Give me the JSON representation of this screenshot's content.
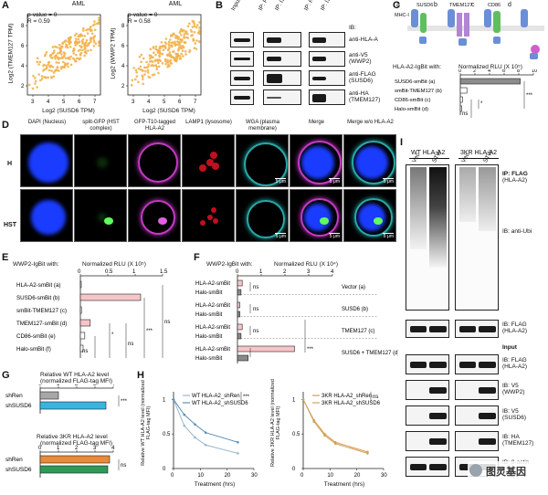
{
  "panels": {
    "A": "A",
    "B": "B",
    "C": "C",
    "D": "D",
    "E": "E",
    "F": "F",
    "G": "G",
    "H": "H",
    "I": "I"
  },
  "panelA": {
    "title": "AML",
    "stats1_p": "p-value = 0",
    "stats1_r": "R = 0.59",
    "stats2_p": "p-value = 0",
    "stats2_r": "R = 0.58",
    "ylabel1": "Log2 (TMEM127 TPM)",
    "ylabel2": "Log2 (WWP2 TPM)",
    "xlabel": "Log2 (SUSD6 TPM)",
    "xticks": [
      "3",
      "4",
      "5",
      "6",
      "7"
    ],
    "yticks": [
      "2",
      "4",
      "6",
      "8"
    ],
    "dot_color": "#f2b24c"
  },
  "panelB": {
    "lanes": [
      "Input",
      "IP: FLAG",
      "IP: ISO",
      "IP: HA",
      "IP: ISO"
    ],
    "ib_header": "IB:",
    "rows": [
      "anti-HLA-A",
      "anti-V5 (WWP2)",
      "anti-FLAG (SUSD6)",
      "anti-HA (TMEM127)"
    ]
  },
  "panelC": {
    "schemes": [
      "a",
      "b",
      "c",
      "d"
    ],
    "labels": [
      "SUSD6",
      "TMEM127",
      "CD86",
      "MHC-I"
    ],
    "ylabel": "HLA-A2-IgBit with:",
    "xlabel": "Normalized RLU (X 10⁵)",
    "xticks": [
      "0",
      "2",
      "4",
      "6",
      "8",
      "10"
    ],
    "rows": [
      "SUSD6-smBit (a)",
      "smBit-TMEM127 (b)",
      "CD86-smBit (c)",
      "Halo-smBit (d)"
    ],
    "chart_data": {
      "type": "bar",
      "categories": [
        "SUSD6-smBit (a)",
        "smBit-TMEM127 (b)",
        "CD86-smBit (c)",
        "Halo-smBit (d)"
      ],
      "values": [
        8.2,
        0.9,
        0.3,
        0.2
      ],
      "xlim": [
        0,
        10
      ],
      "xlabel": "Normalized RLU (X 10⁵)"
    },
    "sig": [
      "ns",
      "*",
      "***"
    ]
  },
  "panelD": {
    "cols": [
      "DAPI (Nucleus)",
      "split-GFP (HST complex)",
      "GFP-T10-tagged HLA-A2",
      "LAMP1 (lysosome)",
      "WGA (plasma membrane)",
      "Merge",
      "Merge w/o HLA-A2"
    ],
    "rows": [
      "H",
      "HST"
    ],
    "scale": "5 μm"
  },
  "panelE": {
    "ylabel": "WWP2-IgBit with:",
    "xlabel": "Normalized RLU (X 10⁵)",
    "xticks": [
      "0",
      "0.5",
      "1",
      "1.5"
    ],
    "rows": [
      "HLA-A2-smBit (a)",
      "SUSD6-smBit (b)",
      "smBit-TMEM127 (c)",
      "TMEM127-smBit (d)",
      "CD86-smBit (e)",
      "Halo-smBit (f)"
    ],
    "chart_data": {
      "type": "bar",
      "categories": [
        "HLA-A2-smBit (a)",
        "SUSD6-smBit (b)",
        "smBit-TMEM127 (c)",
        "TMEM127-smBit (d)",
        "CD86-smBit (e)",
        "Halo-smBit (f)"
      ],
      "values": [
        0.01,
        1.1,
        0.02,
        0.18,
        0.08,
        0.05
      ],
      "xlim": [
        0,
        1.5
      ]
    },
    "sig": [
      "ns",
      "*",
      "ns",
      "***",
      "ns"
    ]
  },
  "panelF": {
    "ylabel": "WWP2-IgBit with:",
    "xlabel": "Normalized RLU (X 10⁴)",
    "xticks": [
      "0",
      "1",
      "2",
      "3",
      "4"
    ],
    "groups": [
      "Vector (a)",
      "SUSD6 (b)",
      "TMEM127 (c)",
      "SUSD6 + TMEM127 (d)"
    ],
    "rows": [
      "HLA-A2-smBit",
      "Halo-smBit"
    ],
    "chart_data": {
      "type": "bar",
      "categories": [
        "Vector (a) HLA-A2-smBit",
        "Vector (a) Halo-smBit",
        "SUSD6 (b) HLA-A2-smBit",
        "SUSD6 (b) Halo-smBit",
        "TMEM127 (c) HLA-A2-smBit",
        "TMEM127 (c) Halo-smBit",
        "SUSD6 + TMEM127 (d) HLA-A2-smBit",
        "SUSD6 + TMEM127 (d) Halo-smBit"
      ],
      "values": [
        0.2,
        0.15,
        0.1,
        0.1,
        0.2,
        0.15,
        2.4,
        0.45
      ],
      "xlim": [
        0,
        4
      ]
    },
    "sig": [
      "ns",
      "ns",
      "ns",
      "***"
    ]
  },
  "panelG": {
    "title1": "Relative WT HLA-A2 level",
    "title1b": "(normalized FLAG-tag MFI)",
    "title2": "Relative 3KR HLA-A2 level",
    "title2b": "(normalized FLAG-tag MFI)",
    "xticks": [
      "0",
      "1",
      "2",
      "3",
      "4"
    ],
    "rows": [
      "shRen",
      "shSUSD6"
    ],
    "chart_data": [
      {
        "type": "bar",
        "categories": [
          "shRen",
          "shSUSD6"
        ],
        "values": [
          1.0,
          3.6
        ],
        "xlim": [
          0,
          4
        ],
        "title": "Relative WT HLA-A2 level"
      },
      {
        "type": "bar",
        "categories": [
          "shRen",
          "shSUSD6"
        ],
        "values": [
          3.8,
          3.7
        ],
        "xlim": [
          0,
          4
        ],
        "title": "Relative 3KR HLA-A2 level"
      }
    ],
    "sig": [
      "***",
      "ns"
    ],
    "colors": {
      "shRen1": "#a7a7a7",
      "shSUSD6_1": "#35b6e0",
      "shRen2": "#e88a3a",
      "shSUSD6_2": "#2e9a56"
    }
  },
  "panelH": {
    "ylabel1": "Relative WT HLA-A2 level (normalized FLAG-tag MFI)",
    "ylabel2": "Relative 3KR HLA-A2 level (normalized FLAG-tag MFI)",
    "xlabel": "Treatment (hrs)",
    "xticks": [
      "0",
      "10",
      "20",
      "30"
    ],
    "yticks": [
      "0",
      "0.5",
      "1"
    ],
    "legend1": [
      "WT HLA-A2_shRen",
      "WT HLA-A2_shSUSD6"
    ],
    "legend2": [
      "3KR HLA-A2_shRen",
      "3KR HLA-A2_shSUSD6"
    ],
    "sig": [
      "***",
      "ns"
    ],
    "chart_data": [
      {
        "type": "line",
        "x": [
          0,
          4,
          8,
          12,
          24
        ],
        "series": [
          {
            "name": "WT HLA-A2_shRen",
            "values": [
              1.0,
              0.62,
              0.45,
              0.34,
              0.22
            ]
          },
          {
            "name": "WT HLA-A2_shSUSD6",
            "values": [
              1.0,
              0.78,
              0.64,
              0.52,
              0.38
            ]
          }
        ],
        "ylim": [
          0,
          1
        ],
        "xlim": [
          0,
          30
        ],
        "xlabel": "Treatment (hrs)"
      },
      {
        "type": "line",
        "x": [
          0,
          4,
          8,
          12,
          24
        ],
        "series": [
          {
            "name": "3KR HLA-A2_shRen",
            "values": [
              1.0,
              0.7,
              0.5,
              0.38,
              0.24
            ]
          },
          {
            "name": "3KR HLA-A2_shSUSD6",
            "values": [
              1.0,
              0.68,
              0.48,
              0.36,
              0.22
            ]
          }
        ],
        "ylim": [
          0,
          1
        ],
        "xlim": [
          0,
          30
        ],
        "xlabel": "Treatment (hrs)"
      }
    ],
    "colors": {
      "a": "#9ab6c9",
      "b": "#5b8fb8",
      "c": "#e29a4c",
      "d": "#c9a760"
    }
  },
  "panelI": {
    "groups": [
      "WT HLA-A2",
      "3KR HLA-A2"
    ],
    "lanes": [
      "Vec",
      "STW",
      "Vec",
      "STW"
    ],
    "ip": "IP: FLAG",
    "ip2": "(HLA-A2)",
    "ib_ubi": "IB: anti-Ubi",
    "ib_flag": "IB: FLAG",
    "ib_flag2": "(HLA-A2)",
    "input": "Input",
    "rows": [
      [
        "IB: FLAG",
        "(HLA-A2)"
      ],
      [
        "IB: V5",
        "(WWP2)"
      ],
      [
        "IB: V5",
        "(SUSD6)"
      ],
      [
        "IB: HA",
        "(TMEM127)"
      ],
      [
        "IB: β-actin",
        ""
      ]
    ]
  },
  "watermark": "图灵基因"
}
